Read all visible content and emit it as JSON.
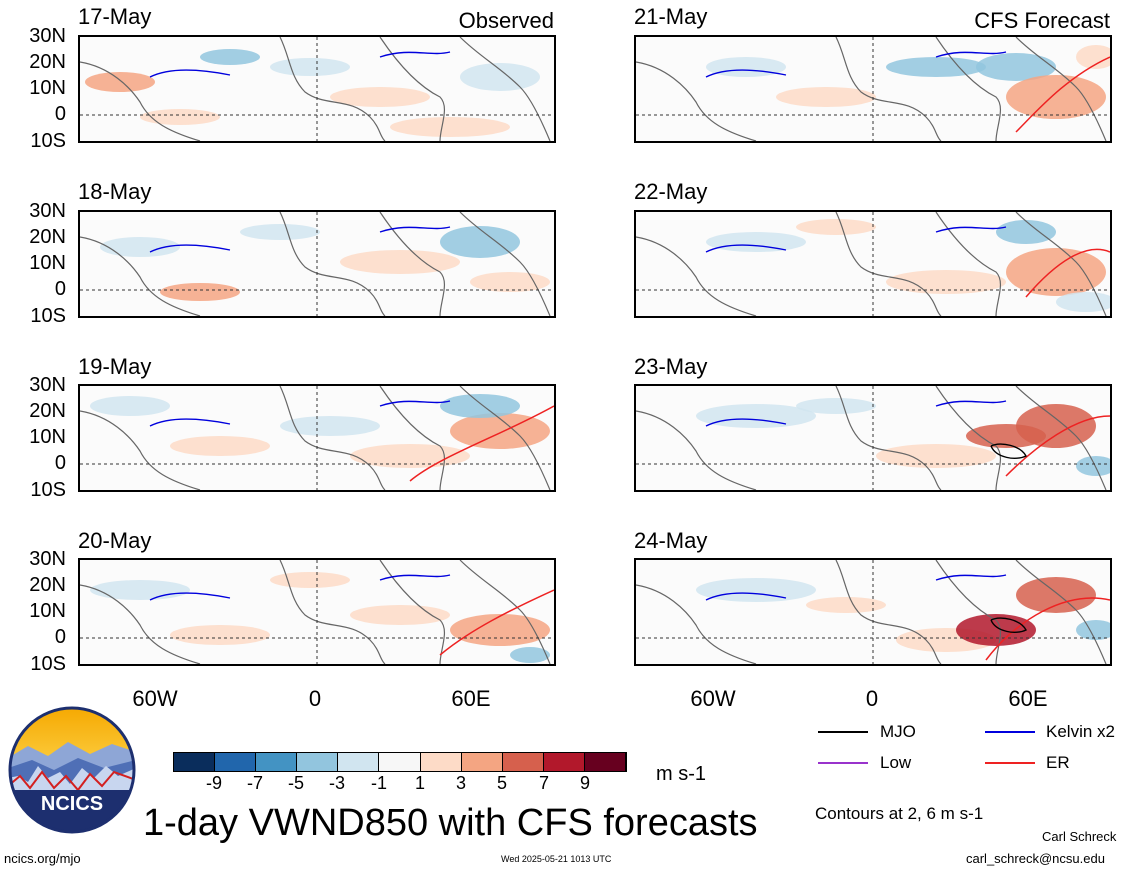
{
  "panels_left": [
    {
      "date": "17-May",
      "tag": "Observed"
    },
    {
      "date": "18-May",
      "tag": ""
    },
    {
      "date": "19-May",
      "tag": ""
    },
    {
      "date": "20-May",
      "tag": ""
    }
  ],
  "panels_right": [
    {
      "date": "21-May",
      "tag": "CFS Forecast"
    },
    {
      "date": "22-May",
      "tag": ""
    },
    {
      "date": "23-May",
      "tag": ""
    },
    {
      "date": "24-May",
      "tag": ""
    }
  ],
  "lat_labels": [
    "30N",
    "20N",
    "10N",
    "0",
    "10S"
  ],
  "lon_labels": [
    "60W",
    "0",
    "60E"
  ],
  "colorbar": {
    "labels": [
      "-9",
      "-7",
      "-5",
      "-3",
      "-1",
      "1",
      "3",
      "5",
      "7",
      "9"
    ],
    "colors": [
      "#0a2d5c",
      "#2166ac",
      "#4393c3",
      "#92c5de",
      "#d1e5f0",
      "#f7f7f7",
      "#fddbc7",
      "#f4a582",
      "#d6604d",
      "#b2182b",
      "#67001f"
    ],
    "unit": "m s-1"
  },
  "legend": {
    "items": [
      {
        "label": "MJO",
        "color": "#000000"
      },
      {
        "label": "Kelvin x2",
        "color": "#0000dd"
      },
      {
        "label": "Low",
        "color": "#9933cc"
      },
      {
        "label": "ER",
        "color": "#ee2222"
      }
    ],
    "contours_note": "Contours at 2, 6 m s-1"
  },
  "logo_text": "NCICS",
  "title": "1-day VWND850 with CFS forecasts",
  "footer": {
    "url": "ncics.org/mjo",
    "timestamp": "Wed 2025-05-21 1013 UTC",
    "author": "Carl Schreck",
    "email": "carl_schreck@ncsu.edu"
  }
}
